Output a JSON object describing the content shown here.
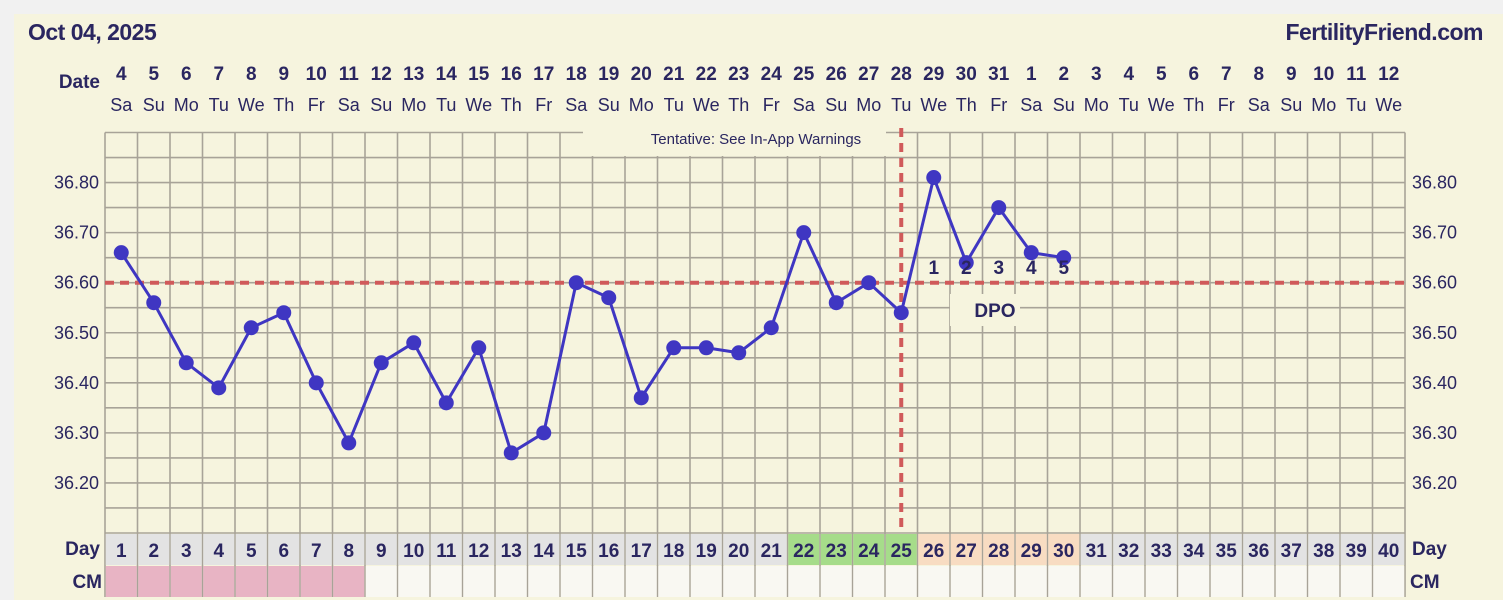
{
  "header": {
    "date": "Oct 04, 2025",
    "site": "FertilityFriend.com"
  },
  "labels": {
    "date_row": "Date",
    "day_row": "Day",
    "cm_row": "CM",
    "tentative": "Tentative: See In-App Warnings",
    "dpo": "DPO"
  },
  "colors": {
    "line": "#3f36c2",
    "coverline": "#d05a5a",
    "grid": "#a8a398",
    "text": "#2a2660",
    "fertile": "#a6dc8a",
    "luteal": "#f8dcc2",
    "day_default": "#e3e3e3",
    "cm_menstrual": "#e8b4c4",
    "cm_empty": "#f9f8f2"
  },
  "chart_data": {
    "type": "line",
    "ylim": [
      36.1,
      36.9
    ],
    "yticks": [
      "36.80",
      "36.70",
      "36.60",
      "36.50",
      "36.40",
      "36.30",
      "36.20"
    ],
    "grid": true,
    "dates": [
      {
        "d": "4",
        "w": "Sa"
      },
      {
        "d": "5",
        "w": "Su"
      },
      {
        "d": "6",
        "w": "Mo"
      },
      {
        "d": "7",
        "w": "Tu"
      },
      {
        "d": "8",
        "w": "We"
      },
      {
        "d": "9",
        "w": "Th"
      },
      {
        "d": "10",
        "w": "Fr"
      },
      {
        "d": "11",
        "w": "Sa"
      },
      {
        "d": "12",
        "w": "Su"
      },
      {
        "d": "13",
        "w": "Mo"
      },
      {
        "d": "14",
        "w": "Tu"
      },
      {
        "d": "15",
        "w": "We"
      },
      {
        "d": "16",
        "w": "Th"
      },
      {
        "d": "17",
        "w": "Fr"
      },
      {
        "d": "18",
        "w": "Sa"
      },
      {
        "d": "19",
        "w": "Su"
      },
      {
        "d": "20",
        "w": "Mo"
      },
      {
        "d": "21",
        "w": "Tu"
      },
      {
        "d": "22",
        "w": "We"
      },
      {
        "d": "23",
        "w": "Th"
      },
      {
        "d": "24",
        "w": "Fr"
      },
      {
        "d": "25",
        "w": "Sa"
      },
      {
        "d": "26",
        "w": "Su"
      },
      {
        "d": "27",
        "w": "Mo"
      },
      {
        "d": "28",
        "w": "Tu"
      },
      {
        "d": "29",
        "w": "We"
      },
      {
        "d": "30",
        "w": "Th"
      },
      {
        "d": "31",
        "w": "Fr"
      },
      {
        "d": "1",
        "w": "Sa"
      },
      {
        "d": "2",
        "w": "Su"
      },
      {
        "d": "3",
        "w": "Mo"
      },
      {
        "d": "4",
        "w": "Tu"
      },
      {
        "d": "5",
        "w": "We"
      },
      {
        "d": "6",
        "w": "Th"
      },
      {
        "d": "7",
        "w": "Fr"
      },
      {
        "d": "8",
        "w": "Sa"
      },
      {
        "d": "9",
        "w": "Su"
      },
      {
        "d": "10",
        "w": "Mo"
      },
      {
        "d": "11",
        "w": "Tu"
      },
      {
        "d": "12",
        "w": "We"
      }
    ],
    "cycle_days": 40,
    "temps": [
      36.66,
      36.56,
      36.44,
      36.39,
      36.51,
      36.54,
      36.4,
      36.28,
      36.44,
      36.48,
      36.36,
      36.47,
      36.26,
      36.3,
      36.6,
      36.57,
      36.37,
      36.47,
      36.47,
      36.46,
      36.51,
      36.7,
      36.56,
      36.6,
      36.54,
      36.81,
      36.64,
      36.75,
      36.66,
      36.65
    ],
    "coverline": 36.6,
    "ovulation_day": 25,
    "dpo_labels": [
      "1",
      "2",
      "3",
      "4",
      "5"
    ],
    "fertile_days": [
      22,
      23,
      24,
      25
    ],
    "luteal_highlight_days": [
      26,
      27,
      28,
      29,
      30
    ],
    "cm_menstrual_days": [
      1,
      2,
      3,
      4,
      5,
      6,
      7,
      8
    ]
  }
}
